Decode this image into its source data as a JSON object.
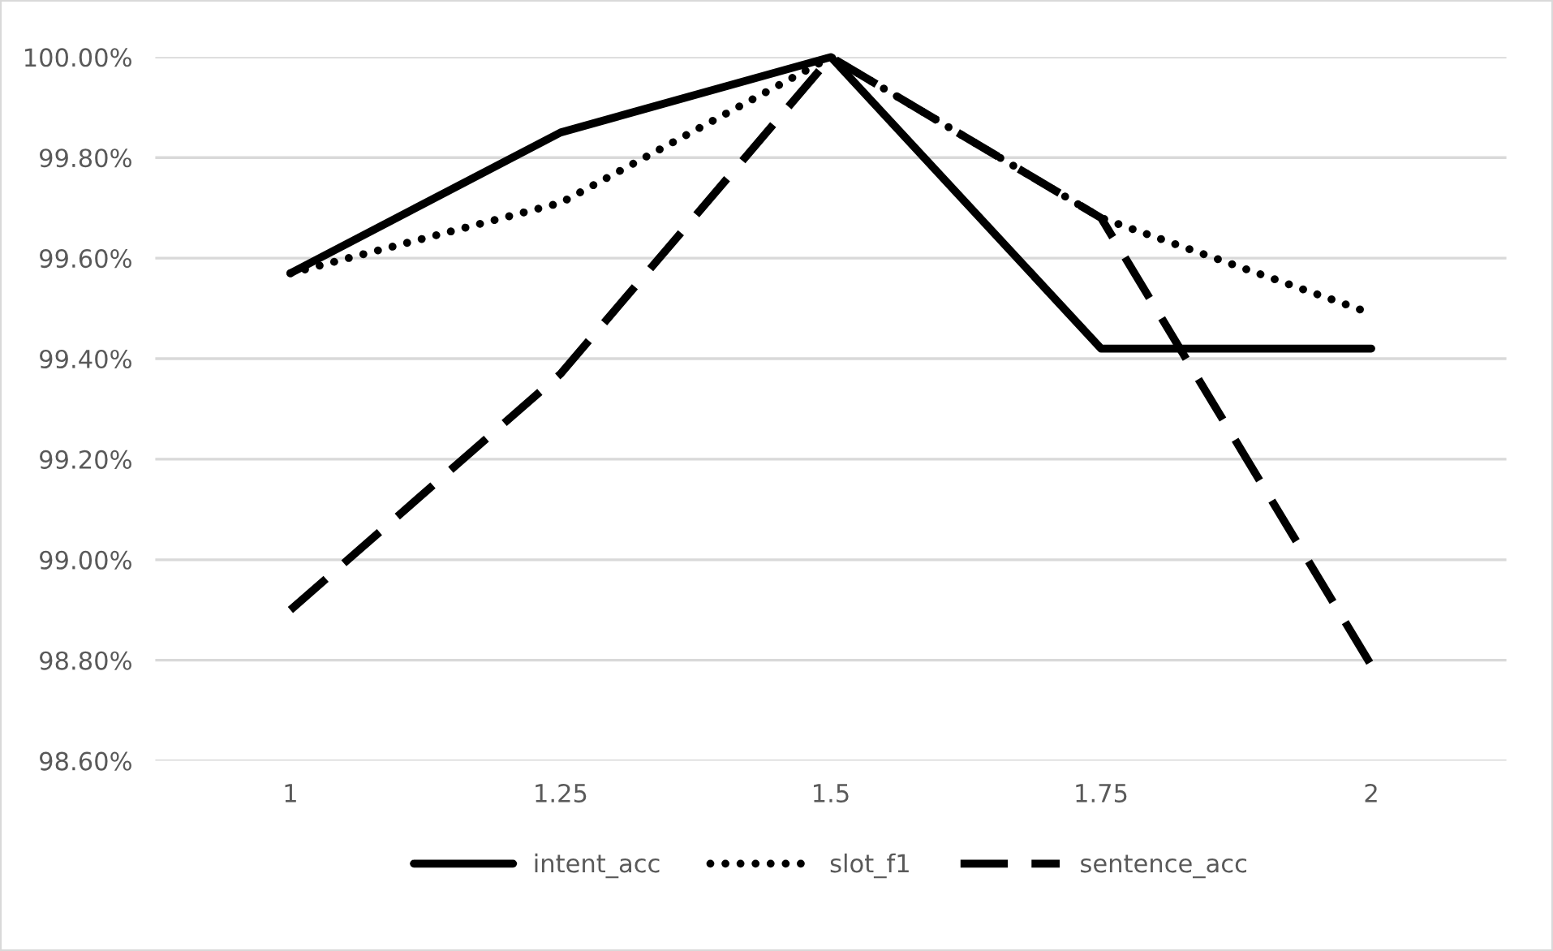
{
  "chart_data": {
    "type": "line",
    "categories": [
      "1",
      "1.25",
      "1.5",
      "1.75",
      "2"
    ],
    "series": [
      {
        "name": "intent_acc",
        "color": "#000000",
        "line_style": "solid",
        "values": [
          99.57,
          99.85,
          100.0,
          99.42,
          99.42
        ]
      },
      {
        "name": "slot_f1",
        "color": "#000000",
        "line_style": "dotted",
        "values": [
          99.57,
          99.71,
          100.0,
          99.68,
          99.49
        ]
      },
      {
        "name": "sentence_acc",
        "color": "#000000",
        "line_style": "dashed",
        "values": [
          98.9,
          99.37,
          100.0,
          99.68,
          98.79
        ]
      }
    ],
    "ylim": [
      98.6,
      100.0
    ],
    "yticks": [
      {
        "value": 98.6,
        "label": "98.60%"
      },
      {
        "value": 98.8,
        "label": "98.80%"
      },
      {
        "value": 99.0,
        "label": "99.00%"
      },
      {
        "value": 99.2,
        "label": "99.20%"
      },
      {
        "value": 99.4,
        "label": "99.40%"
      },
      {
        "value": 99.6,
        "label": "99.60%"
      },
      {
        "value": 99.8,
        "label": "99.80%"
      },
      {
        "value": 100.0,
        "label": "100.00%"
      }
    ],
    "grid": "y",
    "legend": "bottom",
    "marker": "none"
  }
}
